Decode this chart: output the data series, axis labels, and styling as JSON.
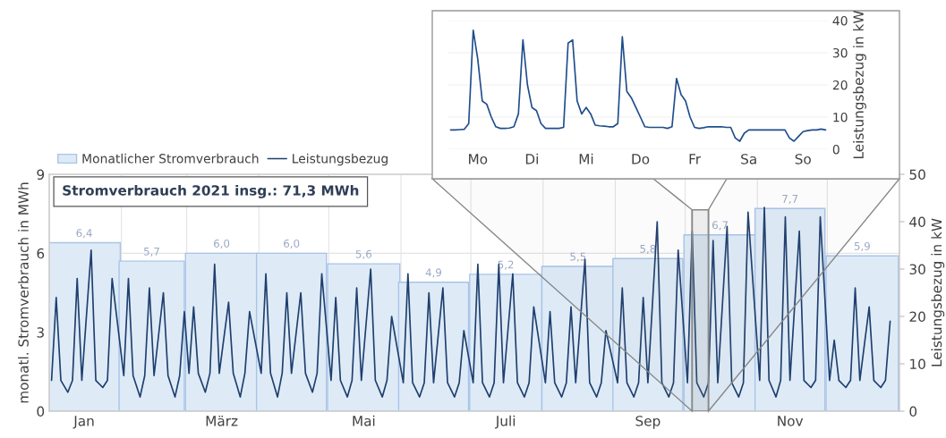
{
  "chart_data": [
    {
      "type": "bar",
      "x": [
        "2021-01-16",
        "2021-02-14",
        "2021-03-16",
        "2021-04-15",
        "2021-05-16",
        "2021-06-15",
        "2021-07-16",
        "2021-08-16",
        "2021-09-15",
        "2021-10-16",
        "2021-11-15",
        "2021-12-16"
      ],
      "xlim": [
        "2021-01-01",
        "2022-01-01"
      ],
      "xticks": [
        {
          "value": "2021-01-01",
          "label": null
        },
        {
          "value": "2021-01-16",
          "label": "Jan"
        },
        {
          "value": "2021-02-01",
          "label": null
        },
        {
          "value": "2021-03-01",
          "label": null
        },
        {
          "value": "2021-03-16",
          "label": "März"
        },
        {
          "value": "2021-04-01",
          "label": null
        },
        {
          "value": "2021-05-01",
          "label": null
        },
        {
          "value": "2021-05-16",
          "label": "Mai"
        },
        {
          "value": "2021-06-01",
          "label": null
        },
        {
          "value": "2021-07-01",
          "label": null
        },
        {
          "value": "2021-07-16",
          "label": "Juli"
        },
        {
          "value": "2021-08-01",
          "label": null
        },
        {
          "value": "2021-09-01",
          "label": null
        },
        {
          "value": "2021-09-15",
          "label": "Sep"
        },
        {
          "value": "2021-10-01",
          "label": null
        },
        {
          "value": "2021-11-01",
          "label": null
        },
        {
          "value": "2021-11-15",
          "label": "Nov"
        },
        {
          "value": "2021-12-01",
          "label": null
        },
        {
          "value": "2022-01-01",
          "label": null
        }
      ],
      "ylabel": "monatl. Stromverbrauch in MWh",
      "y2label": "Leistungsbezug in kW",
      "ylim": [
        0,
        9
      ],
      "yticks": [
        0,
        3,
        6,
        9
      ],
      "y2lim": [
        0,
        50
      ],
      "y2ticks": [
        0,
        10,
        20,
        30,
        40,
        50
      ],
      "grid": true,
      "legend": "top left",
      "bands": [
        {
          "axis": "x",
          "from": "2021-10-04",
          "to": "2021-10-11",
          "color": "#888888"
        }
      ],
      "annotations": [
        "Stromverbrauch 2021 insg.: 71,3 MWh"
      ],
      "series": [
        {
          "name": "Monatlicher Stromverbrauch",
          "type": "bar",
          "color": "#deebf7",
          "values": [
            6.4,
            5.7,
            6.0,
            6.0,
            5.6,
            4.9,
            5.2,
            5.5,
            5.8,
            6.7,
            7.7,
            5.9
          ],
          "value_labels": [
            "6,4",
            "5,7",
            "6,0",
            "6,0",
            "5,6",
            "4,9",
            "5,2",
            "5,5",
            "5,8",
            "6,7",
            "7,7",
            "5,9"
          ]
        },
        {
          "name": "Leistungsbezug",
          "type": "line",
          "axis": "y2",
          "color": "#1f3f6e",
          "x": [
            "2021-01-02",
            "2021-01-04",
            "2021-01-06",
            "2021-01-09",
            "2021-01-11",
            "2021-01-13",
            "2021-01-15",
            "2021-01-19",
            "2021-01-21",
            "2021-01-24",
            "2021-01-26",
            "2021-01-28",
            "2021-02-02",
            "2021-02-04",
            "2021-02-06",
            "2021-02-09",
            "2021-02-11",
            "2021-02-13",
            "2021-02-15",
            "2021-02-19",
            "2021-02-21",
            "2021-02-24",
            "2021-02-26",
            "2021-02-28",
            "2021-03-02",
            "2021-03-04",
            "2021-03-06",
            "2021-03-09",
            "2021-03-11",
            "2021-03-13",
            "2021-03-15",
            "2021-03-19",
            "2021-03-21",
            "2021-03-24",
            "2021-03-26",
            "2021-03-28",
            "2021-04-02",
            "2021-04-04",
            "2021-04-06",
            "2021-04-09",
            "2021-04-11",
            "2021-04-13",
            "2021-04-15",
            "2021-04-19",
            "2021-04-21",
            "2021-04-24",
            "2021-04-26",
            "2021-04-28",
            "2021-05-02",
            "2021-05-04",
            "2021-05-06",
            "2021-05-09",
            "2021-05-11",
            "2021-05-13",
            "2021-05-15",
            "2021-05-19",
            "2021-05-21",
            "2021-05-24",
            "2021-05-26",
            "2021-05-28",
            "2021-06-02",
            "2021-06-04",
            "2021-06-06",
            "2021-06-09",
            "2021-06-11",
            "2021-06-13",
            "2021-06-15",
            "2021-06-19",
            "2021-06-21",
            "2021-06-24",
            "2021-06-26",
            "2021-06-28",
            "2021-07-02",
            "2021-07-04",
            "2021-07-06",
            "2021-07-09",
            "2021-07-11",
            "2021-07-13",
            "2021-07-15",
            "2021-07-19",
            "2021-07-21",
            "2021-07-24",
            "2021-07-26",
            "2021-07-28",
            "2021-08-02",
            "2021-08-04",
            "2021-08-06",
            "2021-08-09",
            "2021-08-11",
            "2021-08-13",
            "2021-08-15",
            "2021-08-19",
            "2021-08-21",
            "2021-08-24",
            "2021-08-26",
            "2021-08-28",
            "2021-09-02",
            "2021-09-04",
            "2021-09-06",
            "2021-09-09",
            "2021-09-11",
            "2021-09-13",
            "2021-09-15",
            "2021-09-19",
            "2021-09-21",
            "2021-09-24",
            "2021-09-26",
            "2021-09-28",
            "2021-10-02",
            "2021-10-04",
            "2021-10-06",
            "2021-10-09",
            "2021-10-11",
            "2021-10-13",
            "2021-10-15",
            "2021-10-19",
            "2021-10-21",
            "2021-10-24",
            "2021-10-26",
            "2021-10-28",
            "2021-11-02",
            "2021-11-04",
            "2021-11-06",
            "2021-11-09",
            "2021-11-11",
            "2021-11-13",
            "2021-11-15",
            "2021-11-19",
            "2021-11-21",
            "2021-11-24",
            "2021-11-26",
            "2021-11-28",
            "2021-12-02",
            "2021-12-04",
            "2021-12-06",
            "2021-12-09",
            "2021-12-11",
            "2021-12-13",
            "2021-12-15",
            "2021-12-19",
            "2021-12-21",
            "2021-12-24",
            "2021-12-26",
            "2021-12-28"
          ],
          "values": [
            6.5,
            24,
            6.5,
            4,
            6.5,
            28,
            6.5,
            34,
            6.5,
            5,
            6.5,
            28,
            7.5,
            28,
            7.5,
            3,
            7.5,
            26,
            7.5,
            25,
            7.5,
            3,
            7.5,
            21,
            8,
            22,
            8,
            4,
            8,
            31,
            8,
            23,
            8,
            3,
            8,
            21,
            8,
            29,
            8,
            3,
            8,
            25,
            8,
            25,
            8,
            4,
            8,
            29,
            6.5,
            24,
            6.5,
            3,
            6.5,
            26,
            6.5,
            30,
            6.5,
            3,
            6.5,
            20,
            6,
            29,
            6,
            3,
            6,
            25,
            6,
            26,
            6,
            3,
            6,
            17,
            6,
            31,
            6,
            3,
            6,
            31,
            6,
            29,
            6,
            3,
            6,
            22,
            6,
            21,
            6,
            3,
            6,
            22,
            6,
            32,
            6,
            3,
            6,
            17,
            6,
            26,
            6,
            3,
            6,
            24,
            6,
            40,
            6,
            3,
            6,
            34,
            6,
            38,
            6,
            3,
            6,
            36,
            6,
            39,
            6,
            3,
            6,
            42,
            6.5,
            43,
            6.5,
            3,
            6.5,
            41,
            6.5,
            38,
            6.5,
            5,
            6.5,
            41,
            6.5,
            15,
            6.5,
            5,
            6.5,
            26,
            6.5,
            22,
            6.5,
            5,
            6.5,
            19
          ]
        }
      ]
    },
    {
      "type": "line",
      "ylim": [
        0,
        40
      ],
      "yticks": [
        0,
        10,
        20,
        30,
        40
      ],
      "grid": true,
      "categories": [
        null,
        null,
        null,
        null,
        null,
        null,
        "Mo",
        null,
        null,
        null,
        null,
        null,
        null,
        null,
        null,
        null,
        null,
        null,
        "Di",
        null,
        null,
        null,
        null,
        null,
        null,
        null,
        null,
        null,
        null,
        null,
        "Mi",
        null,
        null,
        null,
        null,
        null,
        null,
        null,
        null,
        null,
        null,
        null,
        "Do",
        null,
        null,
        null,
        null,
        null,
        null,
        null,
        null,
        null,
        null,
        null,
        "Fr",
        null,
        null,
        null,
        null,
        null,
        null,
        null,
        null,
        null,
        null,
        null,
        "Sa",
        null,
        null,
        null,
        null,
        null,
        null,
        null,
        null,
        null,
        null,
        null,
        "So",
        null,
        null,
        null,
        null,
        null
      ],
      "ylabel": "Leistungsbezug in kW",
      "series": [
        {
          "color": "#1f4e8c",
          "values": [
            6,
            6,
            6.1,
            6.2,
            8,
            37,
            28,
            15,
            14,
            10,
            7,
            6.5,
            6.5,
            6.6,
            7,
            11,
            34,
            20,
            13,
            12,
            8,
            6.5,
            6.5,
            6.5,
            6.5,
            6.8,
            33,
            34,
            15,
            11,
            13,
            11,
            7.5,
            7.3,
            7.2,
            7,
            7,
            8,
            35,
            18,
            16,
            13,
            10,
            7,
            6.8,
            6.8,
            6.8,
            6.8,
            6.5,
            7,
            22,
            17,
            15,
            10,
            6.8,
            6.5,
            6.7,
            7,
            7,
            7,
            7,
            6.8,
            6.8,
            3.5,
            2.5,
            5,
            6,
            6,
            6,
            6,
            6,
            6,
            6,
            6,
            6,
            3.5,
            2.5,
            4,
            5.5,
            5.8,
            6,
            6,
            6.3,
            6
          ]
        }
      ]
    }
  ]
}
